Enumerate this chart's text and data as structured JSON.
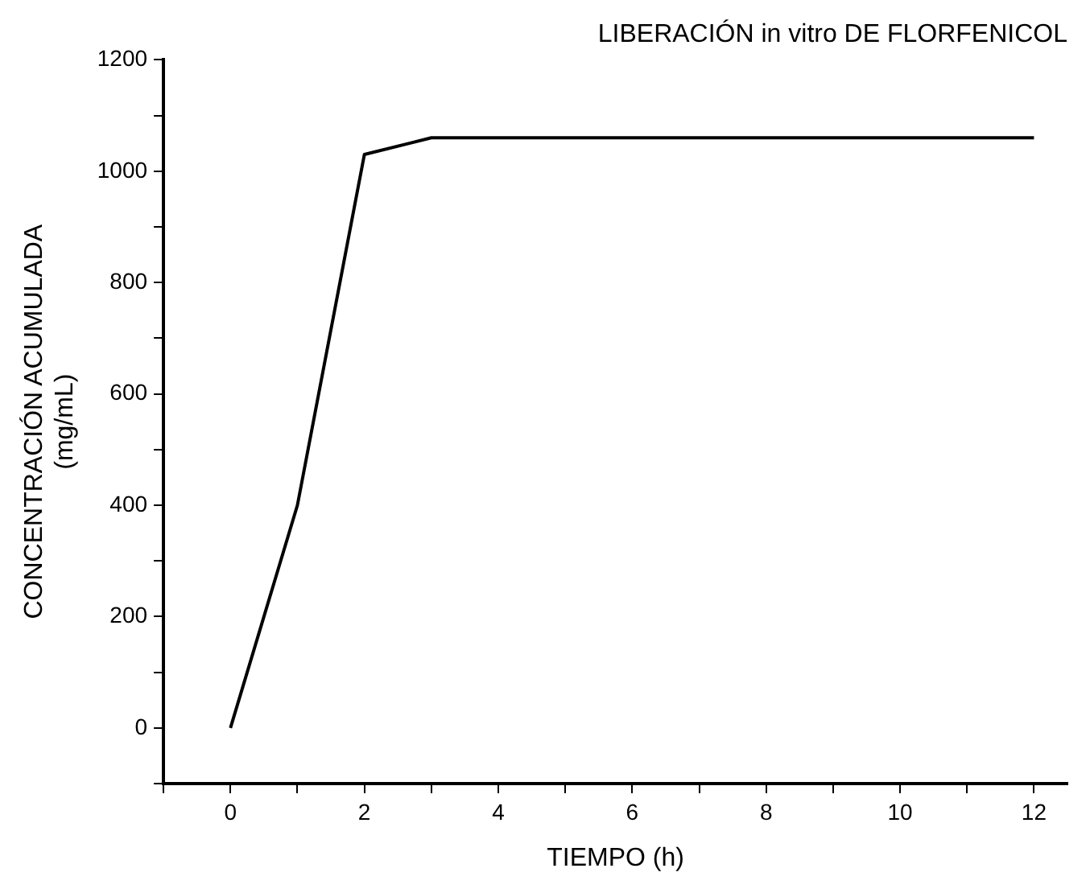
{
  "chart_data": {
    "type": "line",
    "title": "LIBERACIÓN in vitro DE FLORFENICOL",
    "xlabel": "TIEMPO (h)",
    "ylabel": "CONCENTRACIÓN ACUMULADA\n(mg/mL)",
    "x": [
      0,
      1,
      2,
      3,
      12
    ],
    "series": [
      {
        "color": "#000000",
        "values": [
          0,
          400,
          1030,
          1060,
          1060
        ]
      }
    ],
    "xlim": [
      -1,
      12.5
    ],
    "xticks": [
      {
        "value": -1,
        "label": null
      },
      0,
      {
        "value": 1,
        "label": null
      },
      2,
      {
        "value": 3,
        "label": null
      },
      4,
      {
        "value": 5,
        "label": null
      },
      6,
      {
        "value": 7,
        "label": null
      },
      8,
      {
        "value": 9,
        "label": null
      },
      10,
      {
        "value": 11,
        "label": null
      },
      12
    ],
    "ylim": [
      -100,
      1200
    ],
    "yticks": [
      {
        "value": -100,
        "label": null
      },
      0,
      {
        "value": 100,
        "label": null
      },
      200,
      {
        "value": 300,
        "label": null
      },
      400,
      {
        "value": 500,
        "label": null
      },
      600,
      {
        "value": 700,
        "label": null
      },
      800,
      {
        "value": 900,
        "label": null
      },
      1000,
      {
        "value": 1100,
        "label": null
      },
      1200
    ],
    "grid": false,
    "legend": false,
    "marker": "none",
    "line_style": "solid"
  }
}
